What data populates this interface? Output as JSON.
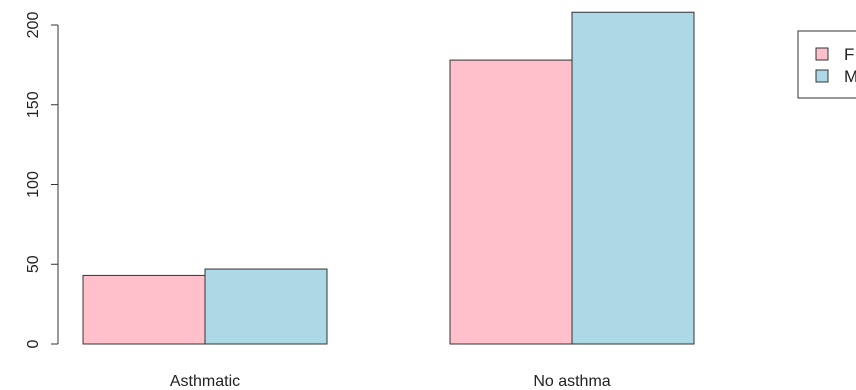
{
  "chart_data": {
    "type": "bar",
    "title": "",
    "xlabel": "",
    "ylabel": "",
    "categories": [
      "Asthmatic",
      "No asthma"
    ],
    "series": [
      {
        "name": "F",
        "values": [
          43,
          178
        ],
        "color": "#FFC0CB"
      },
      {
        "name": "M",
        "values": [
          47,
          208
        ],
        "color": "#ADD8E6"
      }
    ],
    "ylim": [
      0,
      200
    ],
    "yticks": [
      "0",
      "50",
      "100",
      "150",
      "200"
    ],
    "grid": false,
    "legend": {
      "position": "top-right",
      "entries": [
        "F",
        "M"
      ]
    }
  }
}
